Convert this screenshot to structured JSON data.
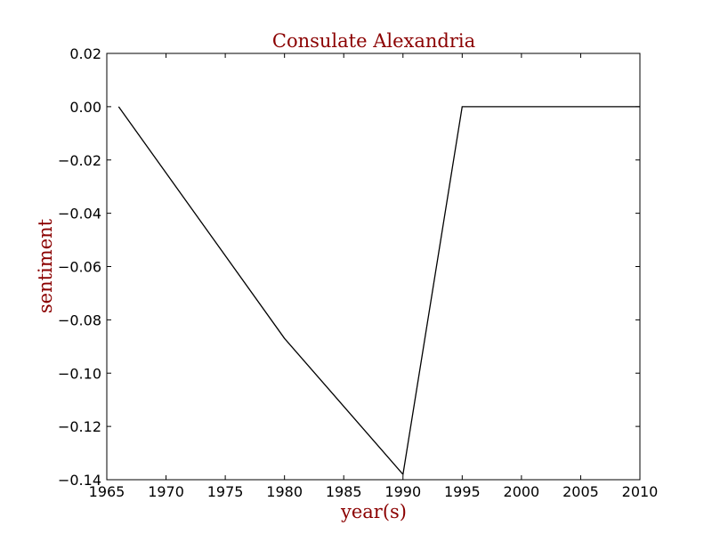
{
  "chart_data": {
    "type": "line",
    "title": "Consulate Alexandria",
    "xlabel": "year(s)",
    "ylabel": "sentiment",
    "xlim": [
      1965,
      2010
    ],
    "ylim": [
      -0.14,
      0.02
    ],
    "x_ticks": [
      1965,
      1970,
      1975,
      1980,
      1985,
      1990,
      1995,
      2000,
      2005,
      2010
    ],
    "x_tick_labels": [
      "1965",
      "1970",
      "1975",
      "1980",
      "1985",
      "1990",
      "1995",
      "2000",
      "2005",
      "2010"
    ],
    "y_ticks": [
      0.02,
      0.0,
      -0.02,
      -0.04,
      -0.06,
      -0.08,
      -0.1,
      -0.12,
      -0.14
    ],
    "y_tick_labels": [
      "0.02",
      "0.00",
      "−0.02",
      "−0.04",
      "−0.06",
      "−0.08",
      "−0.10",
      "−0.12",
      "−0.14"
    ],
    "grid": false,
    "series": [
      {
        "x": [
          1966,
          1980,
          1990,
          1995,
          2010
        ],
        "y": [
          0.0,
          -0.087,
          -0.138,
          0.0,
          0.0
        ],
        "color": "#000000"
      }
    ],
    "title_color": "#8b0000",
    "label_color": "#8b0000"
  }
}
